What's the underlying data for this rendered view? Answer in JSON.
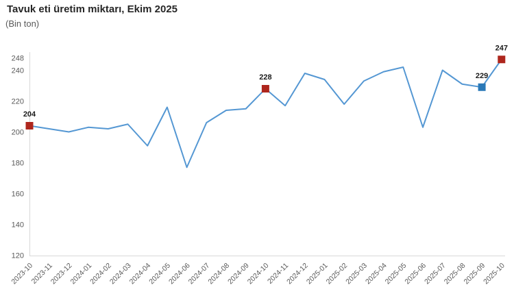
{
  "chart_data": {
    "type": "line",
    "title": "Tavuk eti üretim miktarı, Ekim 2025",
    "unit_label": "(Bin ton)",
    "categories": [
      "2023-10",
      "2023-11",
      "2023-12",
      "2024-01",
      "2024-02",
      "2024-03",
      "2024-04",
      "2024-05",
      "2024-06",
      "2024-07",
      "2024-08",
      "2024-09",
      "2024-10",
      "2024-11",
      "2024-12",
      "2025-01",
      "2025-02",
      "2025-03",
      "2025-04",
      "2025-05",
      "2025-06",
      "2025-07",
      "2025-08",
      "2025-09",
      "2025-10"
    ],
    "values": [
      204,
      202,
      200,
      203,
      202,
      205,
      191,
      216,
      177,
      206,
      214,
      215,
      228,
      217,
      238,
      234,
      218,
      233,
      239,
      242,
      203,
      240,
      231,
      229,
      247
    ],
    "ylim": [
      120,
      248
    ],
    "yticks": [
      120,
      140,
      160,
      180,
      200,
      220,
      240,
      248
    ],
    "grid": false,
    "legend_position": "none",
    "line_color": "#5497d3",
    "axis_color": "#d8d8d8",
    "tick_color": "#595959",
    "data_label_color": "#1a1a1a",
    "highlighted_points": [
      {
        "category": "2023-10",
        "value": 204,
        "label": "204",
        "marker_color": "#ae261d"
      },
      {
        "category": "2024-10",
        "value": 228,
        "label": "228",
        "marker_color": "#ae261d"
      },
      {
        "category": "2025-09",
        "value": 229,
        "label": "229",
        "marker_color": "#2a79b8"
      },
      {
        "category": "2025-10",
        "value": 247,
        "label": "247",
        "marker_color": "#ae261d"
      }
    ]
  }
}
